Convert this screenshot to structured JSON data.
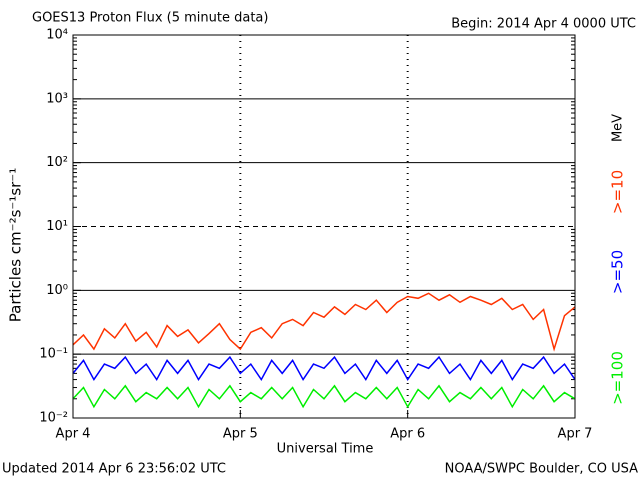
{
  "chart_data": {
    "type": "line",
    "title": "GOES13 Proton Flux (5 minute data)",
    "subtitle": "Begin: 2014 Apr 4 0000 UTC",
    "x_label": "Universal Time",
    "y_label": "Particles cm⁻²s⁻¹sr⁻¹",
    "unit_label": "MeV",
    "footer_left": "Updated 2014 Apr  6 23:56:02 UTC",
    "footer_right": "NOAA/SWPC Boulder, CO USA",
    "log_scale": true,
    "grid": true,
    "dashed_lines": [
      10
    ],
    "xlim": [
      0,
      72
    ],
    "xticks": [
      {
        "value": 0,
        "label": "Apr 4"
      },
      {
        "value": 24,
        "label": "Apr 5"
      },
      {
        "value": 48,
        "label": "Apr 6"
      },
      {
        "value": 72,
        "label": "Apr 7"
      }
    ],
    "ylim": [
      0.01,
      10000
    ],
    "yticks": [
      {
        "value": 0.01,
        "label": "10⁻²"
      },
      {
        "value": 0.1,
        "label": "10⁻¹"
      },
      {
        "value": 1,
        "label": "10⁰"
      },
      {
        "value": 10,
        "label": "10¹"
      },
      {
        "value": 100,
        "label": "10²"
      },
      {
        "value": 1000,
        "label": "10³"
      },
      {
        "value": 10000,
        "label": "10⁴"
      }
    ],
    "x": [
      0,
      1.5,
      3,
      4.5,
      6,
      7.5,
      9,
      10.5,
      12,
      13.5,
      15,
      16.5,
      18,
      19.5,
      21,
      22.5,
      24,
      25.5,
      27,
      28.5,
      30,
      31.5,
      33,
      34.5,
      36,
      37.5,
      39,
      40.5,
      42,
      43.5,
      45,
      46.5,
      48,
      49.5,
      51,
      52.5,
      54,
      55.5,
      57,
      58.5,
      60,
      61.5,
      63,
      64.5,
      66,
      67.5,
      69,
      70.5,
      72
    ],
    "series": [
      {
        "name": ">=10",
        "color": "#ff3300",
        "values": [
          0.14,
          0.2,
          0.12,
          0.25,
          0.18,
          0.3,
          0.16,
          0.22,
          0.13,
          0.28,
          0.19,
          0.24,
          0.15,
          0.21,
          0.3,
          0.17,
          0.12,
          0.22,
          0.26,
          0.18,
          0.3,
          0.35,
          0.28,
          0.45,
          0.38,
          0.55,
          0.42,
          0.6,
          0.5,
          0.7,
          0.45,
          0.65,
          0.8,
          0.75,
          0.9,
          0.7,
          0.85,
          0.65,
          0.8,
          0.7,
          0.6,
          0.75,
          0.5,
          0.6,
          0.35,
          0.5,
          0.12,
          0.4,
          0.55
        ]
      },
      {
        "name": ">=50",
        "color": "#0000ff",
        "values": [
          0.05,
          0.08,
          0.04,
          0.07,
          0.06,
          0.09,
          0.05,
          0.07,
          0.04,
          0.08,
          0.05,
          0.08,
          0.04,
          0.07,
          0.06,
          0.09,
          0.05,
          0.07,
          0.04,
          0.08,
          0.05,
          0.08,
          0.04,
          0.07,
          0.06,
          0.09,
          0.05,
          0.07,
          0.04,
          0.08,
          0.05,
          0.08,
          0.04,
          0.07,
          0.06,
          0.09,
          0.05,
          0.07,
          0.04,
          0.08,
          0.05,
          0.08,
          0.04,
          0.07,
          0.06,
          0.09,
          0.05,
          0.07,
          0.04
        ]
      },
      {
        "name": ">=100",
        "color": "#00ee00",
        "values": [
          0.02,
          0.03,
          0.015,
          0.028,
          0.02,
          0.032,
          0.018,
          0.025,
          0.02,
          0.03,
          0.02,
          0.03,
          0.015,
          0.028,
          0.02,
          0.032,
          0.018,
          0.025,
          0.02,
          0.03,
          0.02,
          0.03,
          0.015,
          0.028,
          0.02,
          0.032,
          0.018,
          0.025,
          0.02,
          0.03,
          0.02,
          0.03,
          0.015,
          0.028,
          0.02,
          0.032,
          0.018,
          0.025,
          0.02,
          0.03,
          0.02,
          0.03,
          0.015,
          0.028,
          0.02,
          0.032,
          0.018,
          0.025,
          0.02
        ]
      }
    ]
  }
}
